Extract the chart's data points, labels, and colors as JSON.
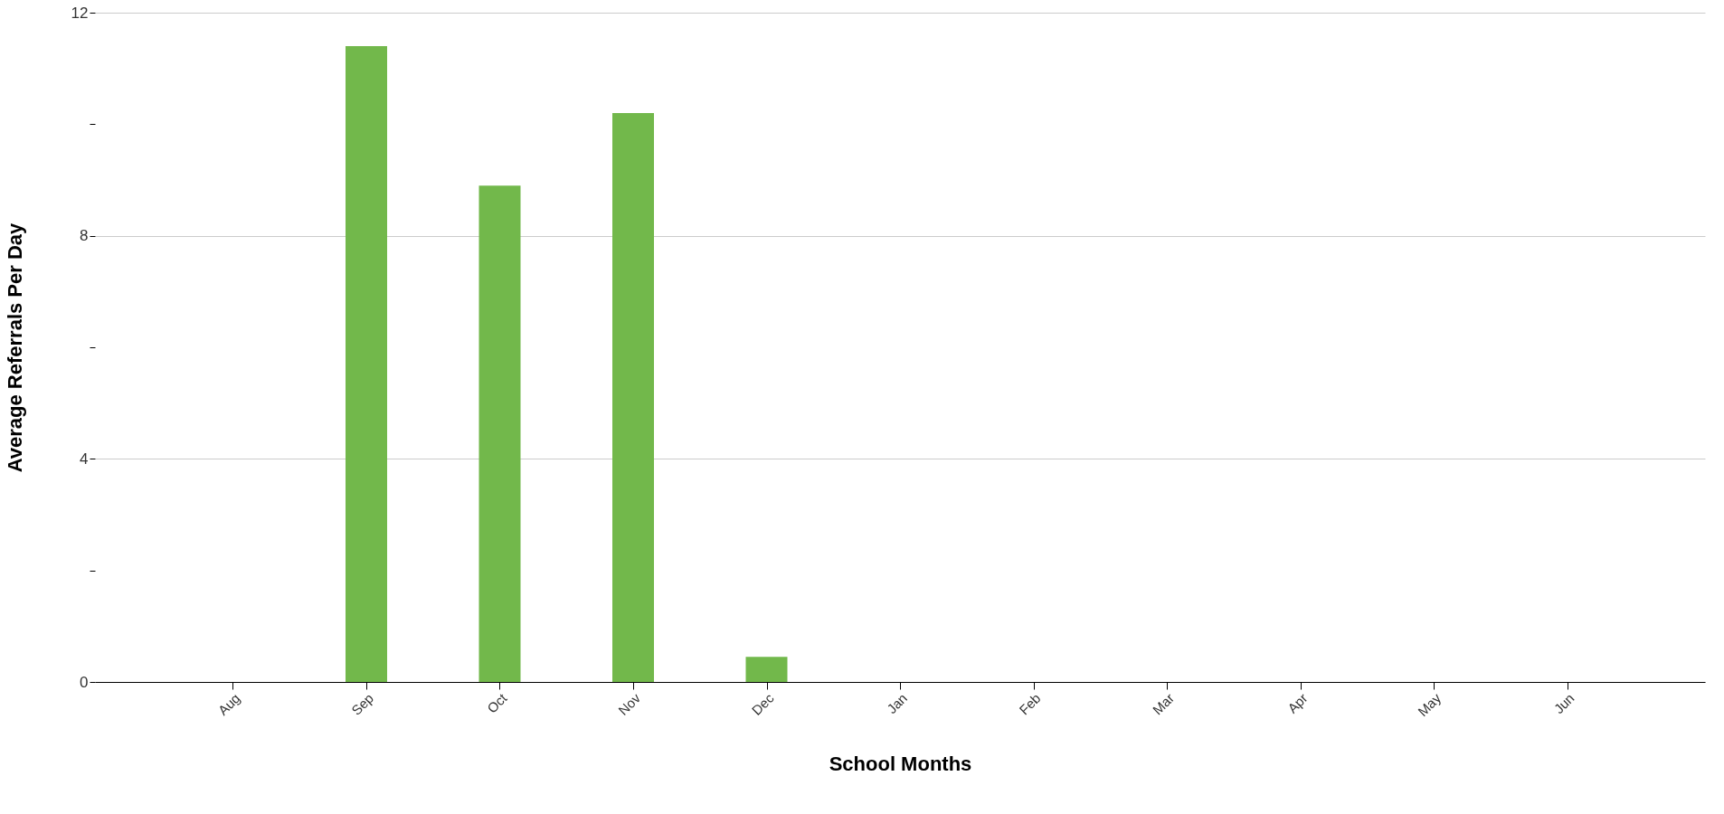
{
  "chart_data": {
    "type": "bar",
    "xlabel": "School Months",
    "ylabel": "Average Referrals Per Day",
    "categories": [
      "Aug",
      "Sep",
      "Oct",
      "Nov",
      "Dec",
      "Jan",
      "Feb",
      "Mar",
      "Apr",
      "May",
      "Jun"
    ],
    "values": [
      0,
      11.4,
      8.9,
      10.2,
      0.45,
      0,
      0,
      0,
      0,
      0,
      0
    ],
    "color": "#72b84b",
    "ylim": [
      0,
      12
    ],
    "yticks": [
      0,
      {
        "value": 2,
        "label": null
      },
      4,
      {
        "value": 6,
        "label": null
      },
      8,
      {
        "value": 10,
        "label": null
      },
      12
    ],
    "grid": "y"
  }
}
